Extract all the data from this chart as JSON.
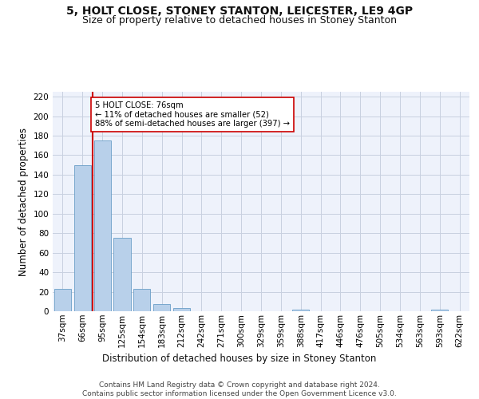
{
  "title": "5, HOLT CLOSE, STONEY STANTON, LEICESTER, LE9 4GP",
  "subtitle": "Size of property relative to detached houses in Stoney Stanton",
  "xlabel": "Distribution of detached houses by size in Stoney Stanton",
  "ylabel": "Number of detached properties",
  "categories": [
    "37sqm",
    "66sqm",
    "95sqm",
    "125sqm",
    "154sqm",
    "183sqm",
    "212sqm",
    "242sqm",
    "271sqm",
    "300sqm",
    "329sqm",
    "359sqm",
    "388sqm",
    "417sqm",
    "446sqm",
    "476sqm",
    "505sqm",
    "534sqm",
    "563sqm",
    "593sqm",
    "622sqm"
  ],
  "values": [
    23,
    150,
    175,
    75,
    23,
    7,
    3,
    0,
    0,
    0,
    0,
    0,
    2,
    0,
    0,
    0,
    0,
    0,
    0,
    2,
    0
  ],
  "bar_color": "#b8d0ea",
  "bar_edge_color": "#6a9fc8",
  "vline_x_idx": 1.5,
  "vline_color": "#cc0000",
  "annotation_text": "5 HOLT CLOSE: 76sqm\n← 11% of detached houses are smaller (52)\n88% of semi-detached houses are larger (397) →",
  "ylim": [
    0,
    225
  ],
  "yticks": [
    0,
    20,
    40,
    60,
    80,
    100,
    120,
    140,
    160,
    180,
    200,
    220
  ],
  "footer": "Contains HM Land Registry data © Crown copyright and database right 2024.\nContains public sector information licensed under the Open Government Licence v3.0.",
  "background_color": "#eef2fb",
  "grid_color": "#c8d0e0",
  "title_fontsize": 10,
  "subtitle_fontsize": 9,
  "axis_label_fontsize": 8.5,
  "tick_fontsize": 7.5,
  "footer_fontsize": 6.5
}
